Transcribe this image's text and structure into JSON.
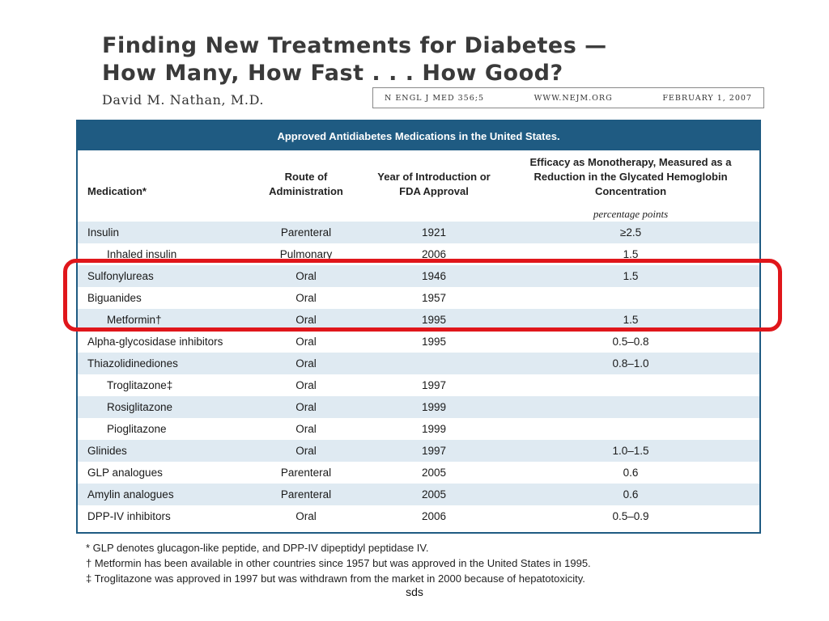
{
  "title": {
    "line1": "Finding New Treatments for Diabetes —",
    "line2": "How Many, How Fast  .  .  .  How Good?",
    "author": "David M. Nathan, M.D."
  },
  "citation": {
    "journal": "N ENGL J MED 356;5",
    "website": "WWW.NEJM.ORG",
    "date": "FEBRUARY 1, 2007"
  },
  "table": {
    "caption": "Approved Antidiabetes Medications in the United States.",
    "headers": {
      "medication": "Medication*",
      "route": "Route of Administration",
      "year": "Year of Introduction or FDA Approval",
      "efficacy": "Efficacy as Monotherapy, Measured as a Reduction in the Glycated Hemoglobin Concentration",
      "efficacy_units": "percentage points"
    },
    "rows": [
      {
        "medication": "Insulin",
        "route": "Parenteral",
        "year": "1921",
        "efficacy": "≥2.5",
        "indent": false
      },
      {
        "medication": "Inhaled insulin",
        "route": "Pulmonary",
        "year": "2006",
        "efficacy": "1.5",
        "indent": true
      },
      {
        "medication": "Sulfonylureas",
        "route": "Oral",
        "year": "1946",
        "efficacy": "1.5",
        "indent": false
      },
      {
        "medication": "Biguanides",
        "route": "Oral",
        "year": "1957",
        "efficacy": "",
        "indent": false
      },
      {
        "medication": "Metformin†",
        "route": "Oral",
        "year": "1995",
        "efficacy": "1.5",
        "indent": true
      },
      {
        "medication": "Alpha-glycosidase inhibitors",
        "route": "Oral",
        "year": "1995",
        "efficacy": "0.5–0.8",
        "indent": false
      },
      {
        "medication": "Thiazolidinediones",
        "route": "Oral",
        "year": "",
        "efficacy": "0.8–1.0",
        "indent": false
      },
      {
        "medication": "Troglitazone‡",
        "route": "Oral",
        "year": "1997",
        "efficacy": "",
        "indent": true
      },
      {
        "medication": "Rosiglitazone",
        "route": "Oral",
        "year": "1999",
        "efficacy": "",
        "indent": true
      },
      {
        "medication": "Pioglitazone",
        "route": "Oral",
        "year": "1999",
        "efficacy": "",
        "indent": true
      },
      {
        "medication": "Glinides",
        "route": "Oral",
        "year": "1997",
        "efficacy": "1.0–1.5",
        "indent": false
      },
      {
        "medication": "GLP analogues",
        "route": "Parenteral",
        "year": "2005",
        "efficacy": "0.6",
        "indent": false
      },
      {
        "medication": "Amylin analogues",
        "route": "Parenteral",
        "year": "2005",
        "efficacy": "0.6",
        "indent": false
      },
      {
        "medication": "DPP-IV inhibitors",
        "route": "Oral",
        "year": "2006",
        "efficacy": "0.5–0.9",
        "indent": false
      }
    ]
  },
  "footnotes": [
    "* GLP denotes glucagon-like peptide, and DPP-IV dipeptidyl peptidase IV.",
    "† Metformin has been available in other countries since 1957 but was approved in the United States in 1995.",
    "‡ Troglitazone was approved in 1997 but was withdrawn from the market in 2000 because of hepatotoxicity."
  ],
  "footer": "sds",
  "colors": {
    "table_header": "#1f5b82",
    "row_shade": "#dfeaf2",
    "highlight": "#e0161b"
  }
}
